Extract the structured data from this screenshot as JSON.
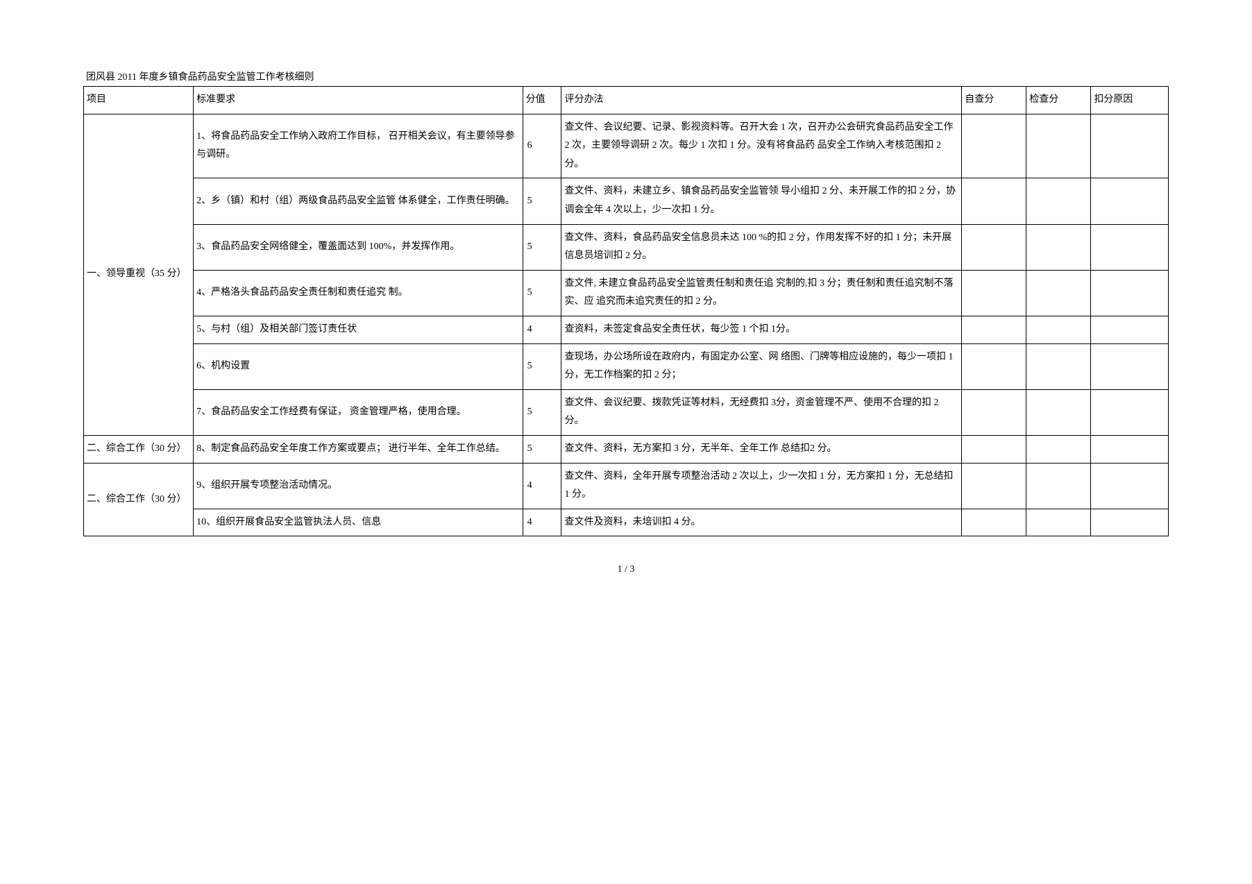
{
  "document": {
    "title": "团风县 2011 年度乡镇食品药品安全监管工作考核细则",
    "page_footer": "1 / 3",
    "headers": {
      "project": "项目",
      "requirement": "标准要求",
      "score": "分值",
      "method": "评分办法",
      "self": "自查分",
      "check": "检查分",
      "reason": "扣分原因"
    },
    "sections": [
      {
        "project": "一、领导重视（35 分）",
        "rowspan": 7,
        "rows": [
          {
            "requirement": "1、将食品药品安全工作纳入政府工作目标，   召开相关会议，有主要领导参与调研。",
            "score": "6",
            "method": "查文件、会议纪要、记录、影视资料等。召开大会 1 次，召开办公会研究食品药品安全工作      2 次，主要领导调研 2 次。每少 1 次扣 1 分。没有将食品药 品安全工作纳入考核范围扣  2 分。"
          },
          {
            "requirement": "2、乡（镇）和村（组）两级食品药品安全监管  体系健全，工作责任明确。",
            "score": "5",
            "method": "查文件、资料，未建立乡、镇食品药品安全监管领  导小组扣 2 分、未开展工作的扣  2 分，协调会全年 4 次以上，少一次扣 1 分。"
          },
          {
            "requirement": "3、食品药品安全网络健全，覆盖面达到  100%，并发挥作用。",
            "score": "5",
            "method": "查文件、资料，食品药品安全信息员未达      100 %的扣 2 分，作用发挥不好的扣    1 分；未开展信息员培训扣 2 分。"
          },
          {
            "requirement": "4、严格洛头食品药品安全责任制和责任追究  制。",
            "score": "5",
            "method": "查文件, 未建立食品药品安全监管责任制和责任追  究制的,扣 3 分；责任制和责任追究制不落实、应  追究而未追究责任的扣  2 分。"
          },
          {
            "requirement": "5、与村（组）及相关部门签订责任状",
            "score": "4",
            "method": "查资料，未签定食品安全责任状，每少签    1 个扣 1分。"
          },
          {
            "requirement": "6、机构设置",
            "score": "5",
            "method": "查现场，办公场所设在政府内，有固定办公室、网  络图、门牌等相应设施的，每少一项扣          1 分，无工作档案的扣 2 分；"
          },
          {
            "requirement": "7、食品药品安全工作经费有保证，    资金管理严格，使用合理。",
            "score": "5",
            "method": "查文件、会议纪要、拨款凭证等材料，无经费扣        3分，资金管理不严、使用不合理的扣    2 分。"
          }
        ]
      },
      {
        "project": "二、综合工作（30 分）",
        "rowspan": 1,
        "rows": [
          {
            "requirement": "8、制定食品药品安全年度工作方案或要点；  进行半年、全年工作总结。",
            "score": "5",
            "method": "查文件、资料，无方案扣 3 分，无半年、全年工作  总结扣2 分。"
          }
        ]
      },
      {
        "project": "二、综合工作（30 分）",
        "rowspan": 2,
        "rows": [
          {
            "requirement": "9、组织开展专项整治活动情况。",
            "score": "4",
            "method": "查文件、资料，全年开展专项整治活动    2 次以上，少一次扣 1 分，无方案扣 1 分，无总结扣 1 分。"
          },
          {
            "requirement": "10、组织开展食品安全监管执法人员、信息",
            "score": "4",
            "method": "查文件及资料，未培训扣  4 分。"
          }
        ]
      }
    ]
  }
}
